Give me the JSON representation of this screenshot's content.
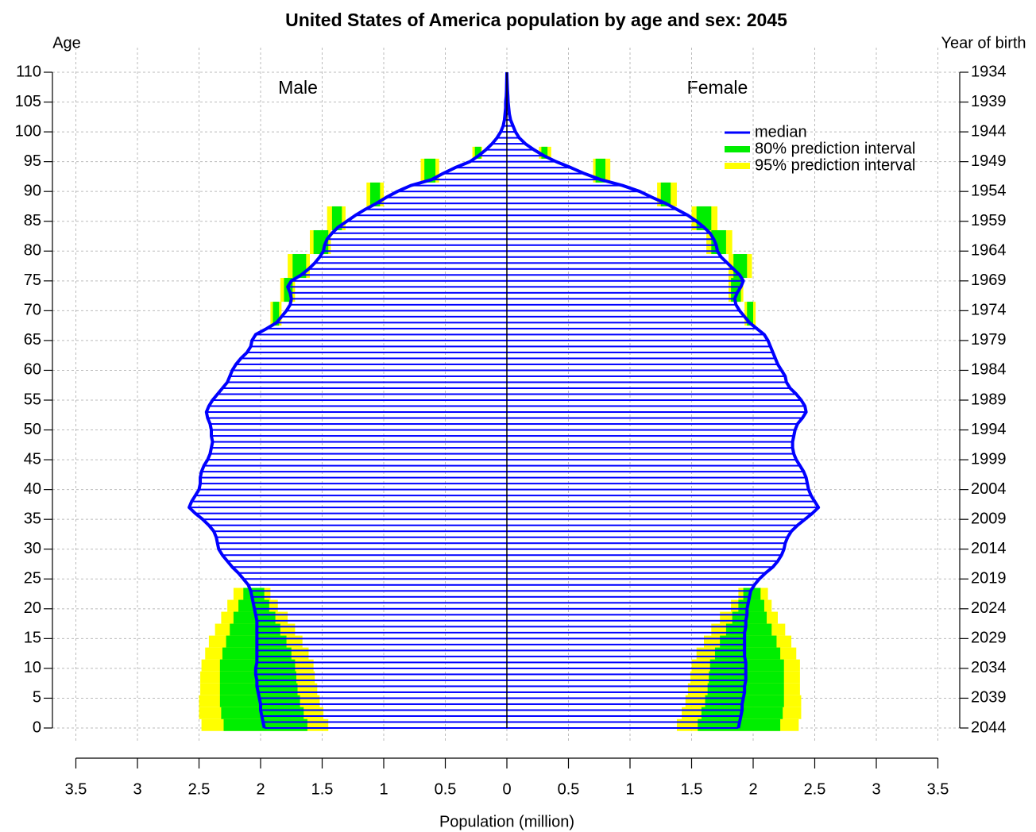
{
  "chart_data": {
    "type": "pyramid",
    "title": "United States of America population by age and sex: 2045",
    "y_label": "Age",
    "y2_label": "Year of birth",
    "x_label": "Population (million)",
    "left_label": "Male",
    "right_label": "Female",
    "grid": true,
    "xlim": [
      -3.5,
      3.5
    ],
    "xticks": [
      {
        "value": -3.5,
        "label": "3.5"
      },
      {
        "value": -3,
        "label": "3"
      },
      {
        "value": -2.5,
        "label": "2.5"
      },
      {
        "value": -2,
        "label": "2"
      },
      {
        "value": -1.5,
        "label": "1.5"
      },
      {
        "value": -1,
        "label": "1"
      },
      {
        "value": -0.5,
        "label": "0.5"
      },
      0,
      0.5,
      1,
      1.5,
      2,
      2.5,
      3,
      3.5
    ],
    "ylim": [
      0,
      110
    ],
    "yticks": [
      0,
      5,
      10,
      15,
      20,
      25,
      30,
      35,
      40,
      45,
      50,
      55,
      60,
      65,
      70,
      75,
      80,
      85,
      90,
      95,
      100,
      105,
      110
    ],
    "y2lim": [
      2044,
      1934
    ],
    "y2ticks": [
      2044,
      2039,
      2034,
      2029,
      2024,
      2019,
      2014,
      2009,
      2004,
      1999,
      1994,
      1989,
      1984,
      1979,
      1974,
      1969,
      1964,
      1959,
      1954,
      1949,
      1944,
      1939,
      1934
    ],
    "y": [
      0,
      1,
      2,
      3,
      4,
      5,
      6,
      7,
      8,
      9,
      10,
      11,
      12,
      13,
      14,
      15,
      16,
      17,
      18,
      19,
      20,
      21,
      22,
      23,
      24,
      25,
      26,
      27,
      28,
      29,
      30,
      31,
      32,
      33,
      34,
      35,
      36,
      37,
      38,
      39,
      40,
      41,
      42,
      43,
      44,
      45,
      46,
      47,
      48,
      49,
      50,
      51,
      52,
      53,
      54,
      55,
      56,
      57,
      58,
      59,
      60,
      61,
      62,
      63,
      64,
      65,
      66,
      67,
      68,
      69,
      70,
      71,
      72,
      73,
      74,
      75,
      76,
      77,
      78,
      79,
      80,
      81,
      82,
      83,
      84,
      85,
      86,
      87,
      88,
      89,
      90,
      91,
      92,
      93,
      94,
      95,
      96,
      97,
      98,
      99,
      100,
      101,
      102,
      103,
      104,
      105,
      106,
      107,
      108,
      109,
      110
    ],
    "series": [
      {
        "name": "median",
        "color": "#0000ff",
        "male": [
          1.97,
          1.98,
          1.99,
          2.0,
          2.0,
          2.01,
          2.02,
          2.03,
          2.03,
          2.04,
          2.04,
          2.03,
          2.03,
          2.03,
          2.03,
          2.03,
          2.03,
          2.03,
          2.03,
          2.04,
          2.05,
          2.06,
          2.07,
          2.08,
          2.1,
          2.14,
          2.18,
          2.23,
          2.27,
          2.31,
          2.34,
          2.35,
          2.36,
          2.38,
          2.42,
          2.47,
          2.53,
          2.58,
          2.56,
          2.53,
          2.5,
          2.49,
          2.49,
          2.48,
          2.46,
          2.43,
          2.41,
          2.4,
          2.39,
          2.4,
          2.4,
          2.41,
          2.43,
          2.44,
          2.42,
          2.39,
          2.35,
          2.31,
          2.27,
          2.25,
          2.23,
          2.2,
          2.16,
          2.11,
          2.08,
          2.07,
          2.04,
          1.95,
          1.87,
          1.83,
          1.79,
          1.76,
          1.75,
          1.76,
          1.78,
          1.75,
          1.67,
          1.61,
          1.56,
          1.52,
          1.49,
          1.48,
          1.46,
          1.42,
          1.37,
          1.3,
          1.23,
          1.15,
          1.06,
          0.98,
          0.89,
          0.78,
          0.61,
          0.52,
          0.42,
          0.3,
          0.23,
          0.17,
          0.12,
          0.08,
          0.05,
          0.03,
          0.02,
          0.015,
          0.01,
          0.01,
          0.005,
          0.003,
          0.002,
          0.001,
          0
        ],
        "female": [
          1.88,
          1.89,
          1.9,
          1.91,
          1.91,
          1.92,
          1.93,
          1.93,
          1.94,
          1.94,
          1.94,
          1.94,
          1.93,
          1.93,
          1.93,
          1.93,
          1.93,
          1.94,
          1.94,
          1.95,
          1.95,
          1.96,
          1.97,
          1.98,
          2.01,
          2.05,
          2.1,
          2.16,
          2.2,
          2.23,
          2.25,
          2.26,
          2.28,
          2.31,
          2.36,
          2.42,
          2.48,
          2.53,
          2.5,
          2.47,
          2.45,
          2.44,
          2.43,
          2.41,
          2.38,
          2.35,
          2.33,
          2.32,
          2.32,
          2.33,
          2.34,
          2.36,
          2.4,
          2.43,
          2.42,
          2.39,
          2.35,
          2.3,
          2.27,
          2.26,
          2.23,
          2.2,
          2.18,
          2.16,
          2.14,
          2.12,
          2.09,
          2.03,
          1.97,
          1.93,
          1.89,
          1.86,
          1.85,
          1.87,
          1.9,
          1.92,
          1.89,
          1.84,
          1.79,
          1.74,
          1.71,
          1.7,
          1.68,
          1.65,
          1.6,
          1.54,
          1.47,
          1.38,
          1.29,
          1.18,
          1.08,
          0.94,
          0.76,
          0.63,
          0.52,
          0.4,
          0.3,
          0.22,
          0.15,
          0.1,
          0.07,
          0.05,
          0.03,
          0.02,
          0.015,
          0.01,
          0.008,
          0.005,
          0.003,
          0.001,
          0
        ]
      },
      {
        "name": "80% prediction interval",
        "color": "#00ee00",
        "ages": [
          0,
          2,
          4,
          6,
          8,
          10,
          12,
          14,
          16,
          18,
          20,
          22,
          68,
          72,
          76,
          80,
          84,
          88,
          92,
          96
        ],
        "male_low": [
          1.62,
          1.65,
          1.68,
          1.7,
          1.71,
          1.72,
          1.75,
          1.79,
          1.84,
          1.88,
          1.93,
          1.97,
          1.85,
          1.74,
          1.63,
          1.45,
          1.34,
          1.03,
          0.58,
          0.21
        ],
        "male_high": [
          2.3,
          2.32,
          2.33,
          2.33,
          2.33,
          2.33,
          2.31,
          2.28,
          2.25,
          2.22,
          2.18,
          2.14,
          1.9,
          1.81,
          1.74,
          1.57,
          1.42,
          1.11,
          0.67,
          0.26
        ],
        "female_low": [
          1.55,
          1.58,
          1.61,
          1.63,
          1.64,
          1.65,
          1.69,
          1.73,
          1.78,
          1.83,
          1.88,
          1.92,
          1.95,
          1.82,
          1.84,
          1.66,
          1.54,
          1.25,
          0.72,
          0.28
        ],
        "female_high": [
          2.22,
          2.24,
          2.25,
          2.25,
          2.25,
          2.25,
          2.22,
          2.19,
          2.15,
          2.11,
          2.09,
          2.06,
          2.0,
          1.9,
          1.95,
          1.78,
          1.66,
          1.33,
          0.8,
          0.33
        ]
      },
      {
        "name": "95% prediction interval",
        "color": "#ffff00",
        "ages": [
          0,
          2,
          4,
          6,
          8,
          10,
          12,
          14,
          16,
          18,
          20,
          22,
          68,
          72,
          76,
          80,
          84,
          88,
          92,
          96
        ],
        "male_low": [
          1.45,
          1.49,
          1.52,
          1.54,
          1.56,
          1.57,
          1.61,
          1.66,
          1.72,
          1.78,
          1.86,
          1.92,
          1.83,
          1.72,
          1.6,
          1.43,
          1.31,
          1.0,
          0.55,
          0.2
        ],
        "male_high": [
          2.48,
          2.5,
          2.5,
          2.49,
          2.49,
          2.48,
          2.45,
          2.42,
          2.37,
          2.32,
          2.27,
          2.22,
          1.92,
          1.84,
          1.78,
          1.6,
          1.46,
          1.14,
          0.7,
          0.28
        ],
        "female_low": [
          1.38,
          1.42,
          1.45,
          1.47,
          1.49,
          1.5,
          1.54,
          1.6,
          1.66,
          1.73,
          1.82,
          1.88,
          1.93,
          1.8,
          1.8,
          1.62,
          1.5,
          1.22,
          0.7,
          0.26
        ],
        "female_high": [
          2.37,
          2.39,
          2.39,
          2.38,
          2.38,
          2.38,
          2.35,
          2.31,
          2.26,
          2.2,
          2.15,
          2.12,
          2.02,
          1.92,
          1.99,
          1.83,
          1.71,
          1.38,
          0.84,
          0.36
        ]
      }
    ]
  }
}
